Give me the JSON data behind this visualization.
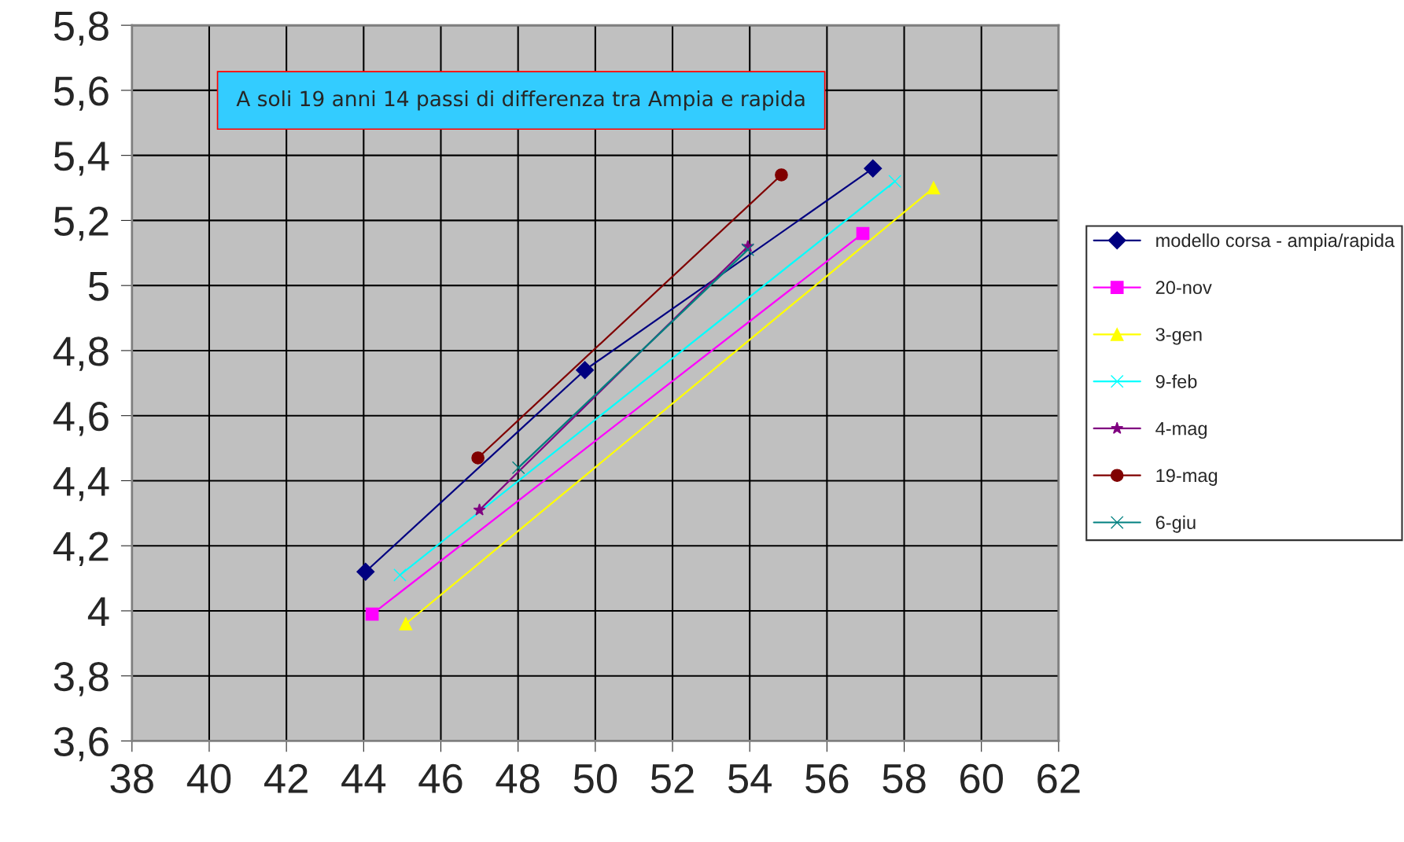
{
  "chart_data": {
    "type": "line",
    "annotations": [
      "A soli 19 anni 14 passi di differenza tra Ampia e rapida"
    ],
    "xlim": [
      38,
      62
    ],
    "xticks": [
      38,
      40,
      42,
      44,
      46,
      48,
      50,
      52,
      54,
      56,
      58,
      60,
      62
    ],
    "ylim": [
      3.6,
      5.8
    ],
    "yticks": [
      {
        "value": 3.6,
        "label": "3,6"
      },
      {
        "value": 3.8,
        "label": "3,8"
      },
      4,
      {
        "value": 4.2,
        "label": "4,2"
      },
      {
        "value": 4.4,
        "label": "4,4"
      },
      {
        "value": 4.6,
        "label": "4,6"
      },
      {
        "value": 4.8,
        "label": "4,8"
      },
      5,
      {
        "value": 5.2,
        "label": "5,2"
      },
      {
        "value": 5.4,
        "label": "5,4"
      },
      {
        "value": 5.6,
        "label": "5,6"
      },
      {
        "value": 5.8,
        "label": "5,8"
      }
    ],
    "grid": true,
    "legend": "right",
    "series": [
      {
        "name": "modello corsa - ampia/rapida",
        "color": "#000080",
        "marker": "diamond",
        "x": [
          44.05,
          49.73,
          57.19
        ],
        "values": [
          4.12,
          4.74,
          5.36
        ]
      },
      {
        "name": "20-nov",
        "color": "#ff00ff",
        "marker": "square",
        "x": [
          44.22,
          56.93
        ],
        "values": [
          3.99,
          5.16
        ]
      },
      {
        "name": "3-gen",
        "color": "#ffff00",
        "marker": "triangle",
        "x": [
          45.09,
          58.76
        ],
        "values": [
          3.96,
          5.3
        ]
      },
      {
        "name": "9-feb",
        "color": "#00ffff",
        "marker": "cross",
        "x": [
          44.94,
          57.76
        ],
        "values": [
          4.11,
          5.32
        ]
      },
      {
        "name": "4-mag",
        "color": "#800080",
        "marker": "star",
        "x": [
          47.0,
          53.95
        ],
        "values": [
          4.31,
          5.12
        ]
      },
      {
        "name": "19-mag",
        "color": "#800000",
        "marker": "circle",
        "x": [
          46.96,
          54.82
        ],
        "values": [
          4.47,
          5.34
        ]
      },
      {
        "name": "6-giu",
        "color": "#008080",
        "marker": "cross",
        "x": [
          48.01,
          53.95
        ],
        "values": [
          4.44,
          5.11
        ]
      }
    ]
  }
}
